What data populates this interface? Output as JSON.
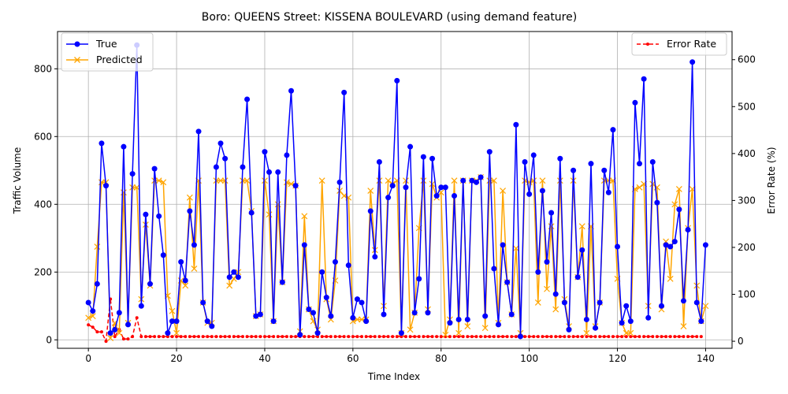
{
  "chart_data": {
    "type": "line",
    "title": "Boro: QUEENS Street: KISSENA BOULEVARD (using demand feature)",
    "xlabel": "Time Index",
    "ylabel_left": "Traffic Volume",
    "ylabel_right": "Error Rate (%)",
    "xlim": [
      -7,
      146
    ],
    "ylim_left": [
      -25,
      910
    ],
    "ylim_right": [
      -15,
      660
    ],
    "x_ticks": [
      0,
      20,
      40,
      60,
      80,
      100,
      120,
      140
    ],
    "y_ticks_left": [
      0,
      200,
      400,
      600,
      800
    ],
    "y_ticks_right": [
      0,
      100,
      200,
      300,
      400,
      500,
      600
    ],
    "grid": true,
    "legend_left": "upper left",
    "legend_right": "upper right",
    "colors": {
      "true": "#0000ff",
      "predicted": "#ffa500",
      "error": "#ff0000"
    },
    "series": [
      {
        "name": "True",
        "marker": "circle",
        "values": [
          110,
          85,
          165,
          580,
          455,
          20,
          30,
          80,
          570,
          45,
          490,
          870,
          100,
          370,
          165,
          505,
          365,
          250,
          20,
          55,
          55,
          230,
          175,
          380,
          280,
          615,
          110,
          55,
          40,
          510,
          580,
          535,
          185,
          200,
          185,
          510,
          710,
          375,
          70,
          75,
          555,
          495,
          55,
          495,
          170,
          545,
          735,
          455,
          15,
          280,
          90,
          80,
          20,
          200,
          125,
          70,
          230,
          465,
          730,
          220,
          65,
          120,
          110,
          55,
          380,
          245,
          525,
          75,
          420,
          455,
          765,
          20,
          450,
          570,
          80,
          180,
          540,
          80,
          535,
          425,
          450,
          450,
          50,
          425,
          60,
          470,
          60,
          470,
          465,
          480,
          70,
          555,
          210,
          45,
          280,
          170,
          75,
          635,
          10,
          525,
          430,
          545,
          200,
          440,
          230,
          375,
          135,
          535,
          110,
          30,
          500,
          185,
          265,
          60,
          520,
          35,
          110,
          500,
          435,
          620,
          275,
          50,
          100,
          55,
          700,
          520,
          770,
          65,
          525,
          405,
          100,
          280,
          275,
          290,
          385,
          115,
          325,
          820,
          110,
          55,
          280
        ]
      },
      {
        "name": "Predicted",
        "marker": "x",
        "values": [
          65,
          70,
          275,
          465,
          465,
          5,
          50,
          20,
          435,
          50,
          450,
          450,
          120,
          340,
          160,
          470,
          470,
          465,
          130,
          85,
          20,
          175,
          160,
          420,
          210,
          470,
          110,
          50,
          50,
          470,
          470,
          470,
          160,
          180,
          200,
          470,
          470,
          380,
          70,
          75,
          470,
          370,
          55,
          400,
          170,
          465,
          460,
          455,
          25,
          365,
          90,
          55,
          30,
          470,
          120,
          60,
          175,
          440,
          425,
          420,
          55,
          60,
          60,
          60,
          440,
          265,
          470,
          100,
          470,
          460,
          470,
          20,
          470,
          30,
          80,
          330,
          470,
          90,
          460,
          420,
          435,
          15,
          60,
          470,
          20,
          470,
          40,
          470,
          470,
          480,
          35,
          470,
          470,
          50,
          440,
          170,
          75,
          270,
          20,
          470,
          465,
          470,
          110,
          470,
          150,
          335,
          90,
          470,
          120,
          40,
          470,
          185,
          335,
          20,
          335,
          40,
          110,
          470,
          470,
          470,
          180,
          50,
          20,
          20,
          445,
          450,
          460,
          100,
          460,
          450,
          90,
          290,
          180,
          400,
          445,
          40,
          330,
          445,
          160,
          55,
          100
        ]
      },
      {
        "name": "Error Rate",
        "marker": "dot",
        "values": [
          35,
          30,
          20,
          20,
          0,
          90,
          10,
          25,
          5,
          5,
          10,
          50,
          10,
          10,
          10,
          10,
          10,
          10,
          10,
          10,
          10,
          10,
          10,
          10,
          10,
          10,
          10,
          10,
          10,
          10,
          10,
          10,
          10,
          10,
          10,
          10,
          10,
          10,
          10,
          10,
          10,
          10,
          10,
          10,
          10,
          10,
          10,
          10,
          10,
          10,
          10,
          10,
          10,
          10,
          10,
          10,
          10,
          10,
          10,
          10,
          10,
          10,
          10,
          10,
          10,
          10,
          10,
          10,
          10,
          10,
          10,
          10,
          10,
          10,
          10,
          10,
          10,
          10,
          10,
          10,
          10,
          10,
          10,
          10,
          10,
          10,
          10,
          10,
          10,
          10,
          10,
          10,
          10,
          10,
          10,
          10,
          10,
          10,
          10,
          10,
          10,
          10,
          10,
          10,
          10,
          10,
          10,
          10,
          10,
          10,
          10,
          10,
          10,
          10,
          10,
          10,
          10,
          10,
          10,
          10,
          10,
          10,
          10,
          10,
          10,
          10,
          10,
          10,
          10,
          10,
          10,
          10,
          10,
          10,
          10,
          10,
          10,
          10,
          10,
          10
        ]
      }
    ]
  }
}
